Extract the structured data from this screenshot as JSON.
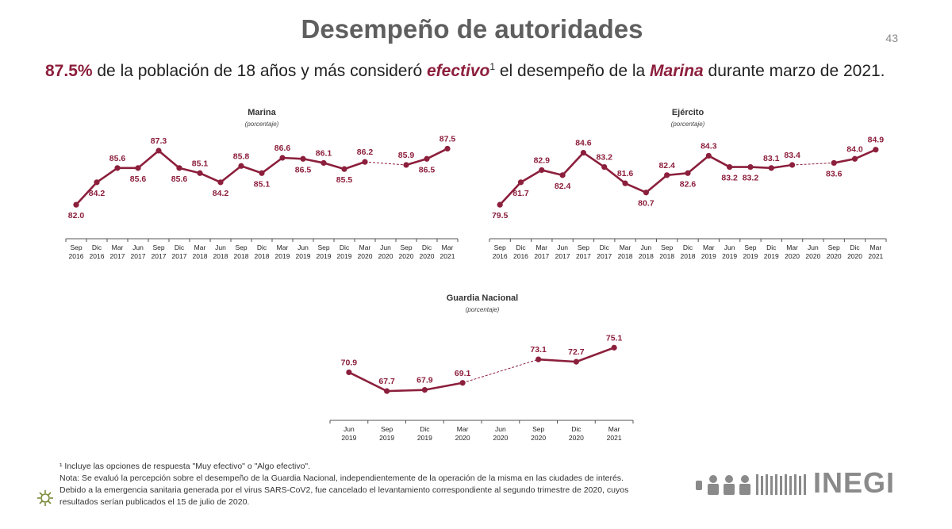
{
  "title": "Desempeño de autoridades",
  "page_number": "43",
  "headline": {
    "pct": "87.5%",
    "part1": " de la población de 18 años y más consideró ",
    "em1": "efectivo",
    "sup": "1",
    "part2": " el desempeño de la ",
    "em2": "Marina",
    "part3": " durante marzo de 2021."
  },
  "colors": {
    "series": "#8c1f3c",
    "axis": "#555555",
    "brand": "#8a8a8a"
  },
  "chart_data": [
    {
      "type": "line",
      "title": "Marina",
      "subtitle": "(porcentaje)",
      "categories": [
        [
          "Sep",
          "2016"
        ],
        [
          "Dic",
          "2016"
        ],
        [
          "Mar",
          "2017"
        ],
        [
          "Jun",
          "2017"
        ],
        [
          "Sep",
          "2017"
        ],
        [
          "Dic",
          "2017"
        ],
        [
          "Mar",
          "2018"
        ],
        [
          "Jun",
          "2018"
        ],
        [
          "Sep",
          "2018"
        ],
        [
          "Dic",
          "2018"
        ],
        [
          "Mar",
          "2019"
        ],
        [
          "Jun",
          "2019"
        ],
        [
          "Sep",
          "2019"
        ],
        [
          "Dic",
          "2019"
        ],
        [
          "Mar",
          "2020"
        ],
        [
          "Jun",
          "2020"
        ],
        [
          "Sep",
          "2020"
        ],
        [
          "Dic",
          "2020"
        ],
        [
          "Mar",
          "2021"
        ]
      ],
      "values": [
        82.0,
        84.2,
        85.6,
        85.6,
        87.3,
        85.6,
        85.1,
        84.2,
        85.8,
        85.1,
        86.6,
        86.5,
        86.1,
        85.5,
        86.2,
        null,
        85.9,
        86.5,
        87.5
      ],
      "labels": [
        "82.0",
        "84.2",
        "85.6",
        "85.6",
        "87.3",
        "85.6",
        "85.1",
        "84.2",
        "85.8",
        "85.1",
        "86.6",
        "86.5",
        "86.1",
        "85.5",
        "86.2",
        "",
        "85.9",
        "86.5",
        "87.5"
      ],
      "label_pos": [
        "below",
        "below",
        "above",
        "below",
        "above",
        "below",
        "above",
        "below",
        "above",
        "below",
        "above",
        "below",
        "above",
        "below",
        "above",
        "",
        "above",
        "below",
        "above"
      ],
      "ylim": [
        81.0,
        88.0
      ],
      "dashed_gap": true
    },
    {
      "type": "line",
      "title": "Ejército",
      "subtitle": "(porcentaje)",
      "categories": [
        [
          "Sep",
          "2016"
        ],
        [
          "Dic",
          "2016"
        ],
        [
          "Mar",
          "2017"
        ],
        [
          "Jun",
          "2017"
        ],
        [
          "Sep",
          "2017"
        ],
        [
          "Dic",
          "2017"
        ],
        [
          "Mar",
          "2018"
        ],
        [
          "Jun",
          "2018"
        ],
        [
          "Sep",
          "2018"
        ],
        [
          "Dic",
          "2018"
        ],
        [
          "Mar",
          "2019"
        ],
        [
          "Jun",
          "2019"
        ],
        [
          "Sep",
          "2019"
        ],
        [
          "Dic",
          "2019"
        ],
        [
          "Mar",
          "2020"
        ],
        [
          "Jun",
          "2020"
        ],
        [
          "Sep",
          "2020"
        ],
        [
          "Dic",
          "2020"
        ],
        [
          "Mar",
          "2021"
        ]
      ],
      "values": [
        79.5,
        81.7,
        82.9,
        82.4,
        84.6,
        83.2,
        81.6,
        80.7,
        82.4,
        82.6,
        84.3,
        83.2,
        83.2,
        83.1,
        83.4,
        null,
        83.6,
        84.0,
        84.9
      ],
      "labels": [
        "79.5",
        "81.7",
        "82.9",
        "82.4",
        "84.6",
        "83.2",
        "81.6",
        "80.7",
        "82.4",
        "82.6",
        "84.3",
        "83.2",
        "83.2",
        "83.1",
        "83.4",
        "",
        "83.6",
        "84.0",
        "84.9"
      ],
      "label_pos": [
        "below",
        "below",
        "above",
        "below",
        "above",
        "above",
        "above",
        "below",
        "above",
        "below",
        "above",
        "below",
        "below",
        "above",
        "above",
        "",
        "below",
        "above",
        "above"
      ],
      "ylim": [
        78.5,
        85.5
      ],
      "dashed_gap": true
    },
    {
      "type": "line",
      "title": "Guardia Nacional",
      "subtitle": "(porcentaje)",
      "categories": [
        [
          "Jun",
          "2019"
        ],
        [
          "Sep",
          "2019"
        ],
        [
          "Dic",
          "2019"
        ],
        [
          "Mar",
          "2020"
        ],
        [
          "Jun",
          "2020"
        ],
        [
          "Sep",
          "2020"
        ],
        [
          "Dic",
          "2020"
        ],
        [
          "Mar",
          "2021"
        ]
      ],
      "values": [
        70.9,
        67.7,
        67.9,
        69.1,
        null,
        73.1,
        72.7,
        75.1
      ],
      "labels": [
        "70.9",
        "67.7",
        "67.9",
        "69.1",
        "",
        "73.1",
        "72.7",
        "75.1"
      ],
      "label_pos": [
        "above",
        "above",
        "above",
        "above",
        "",
        "above",
        "above",
        "above"
      ],
      "ylim": [
        66.5,
        76.5
      ],
      "dashed_gap": true
    }
  ],
  "footnotes": [
    "¹ Incluye las opciones de respuesta \"Muy efectivo\" o \"Algo efectivo\".",
    "Nota: Se evaluó la percepción sobre el desempeño de la Guardia Nacional, independientemente de la operación de la misma en las ciudades de interés.",
    "Debido a la emergencia sanitaria generada por el virus SARS-CoV2, fue cancelado el levantamiento correspondiente al segundo trimestre de 2020, cuyos",
    "resultados serían publicados el 15   de julio de 2020."
  ],
  "brand": {
    "name": "INEGI",
    "icon": "inegi-logo-icon"
  }
}
